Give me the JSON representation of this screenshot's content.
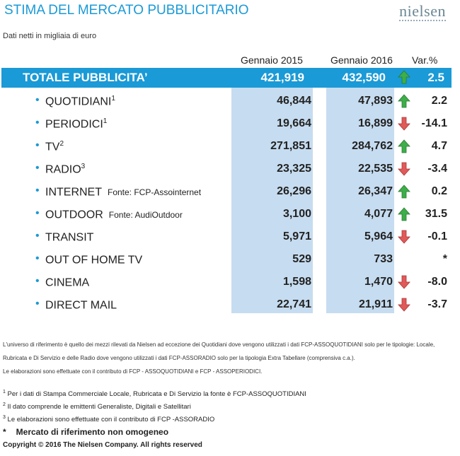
{
  "header": {
    "title": "STIMA DEL MERCATO PUBBLICITARIO",
    "logo": "nielsen",
    "subtitle": "Dati netti in migliaia di euro"
  },
  "columns": {
    "c1": "Gennaio 2015",
    "c2": "Gennaio 2016",
    "c3": "Var.%"
  },
  "colors": {
    "accent": "#1a9ad6",
    "column_bg": "#c6dcf0",
    "up": "#3dae49",
    "down": "#e05a5a"
  },
  "total": {
    "label": "TOTALE PUBBLICITA’",
    "v2015": "421,919",
    "v2016": "432,590",
    "trend": "up",
    "var": "2.5"
  },
  "rows": [
    {
      "label": "QUOTIDIANI",
      "sup": "1",
      "source": "",
      "v2015": "46,844",
      "v2016": "47,893",
      "trend": "up",
      "var": "2.2"
    },
    {
      "label": "PERIODICI",
      "sup": "1",
      "source": "",
      "v2015": "19,664",
      "v2016": "16,899",
      "trend": "down",
      "var": "-14.1"
    },
    {
      "label": "TV",
      "sup": "2",
      "source": "",
      "v2015": "271,851",
      "v2016": "284,762",
      "trend": "up",
      "var": "4.7"
    },
    {
      "label": "RADIO",
      "sup": "3",
      "source": "",
      "v2015": "23,325",
      "v2016": "22,535",
      "trend": "down",
      "var": "-3.4"
    },
    {
      "label": "INTERNET",
      "sup": "",
      "source": "Fonte: FCP-Assointernet",
      "v2015": "26,296",
      "v2016": "26,347",
      "trend": "up",
      "var": "0.2"
    },
    {
      "label": "OUTDOOR",
      "sup": "",
      "source": "Fonte: AudiOutdoor",
      "v2015": "3,100",
      "v2016": "4,077",
      "trend": "up",
      "var": "31.5"
    },
    {
      "label": "TRANSIT",
      "sup": "",
      "source": "",
      "v2015": "5,971",
      "v2016": "5,964",
      "trend": "down",
      "var": "-0.1"
    },
    {
      "label": "OUT OF HOME TV",
      "sup": "",
      "source": "",
      "v2015": "529",
      "v2016": "733",
      "trend": "",
      "var": "*"
    },
    {
      "label": "CINEMA",
      "sup": "",
      "source": "",
      "v2015": "1,598",
      "v2016": "1,470",
      "trend": "down",
      "var": "-8.0"
    },
    {
      "label": "DIRECT MAIL",
      "sup": "",
      "source": "",
      "v2015": "22,741",
      "v2016": "21,911",
      "trend": "down",
      "var": "-3.7"
    }
  ],
  "notes": [
    "L'universo di riferimento è quello dei mezzi rilevati da Nielsen ad eccezione dei Quotidiani dove vengono utilizzati i dati FCP-ASSOQUOTIDIANI solo per le tipologie: Locale,",
    "Rubricata e Di Servizio e delle Radio dove vengono utilizzati i dati FCP-ASSORADIO solo per la tipologia Extra Tabellare (comprensiva c.a.).",
    "Le elaborazioni sono effettuate con il contributo di FCP - ASSOQUOTIDIANI e FCP - ASSOPERIODICI."
  ],
  "footnotes": [
    {
      "mark": "1",
      "text": "Per i dati di Stampa Commerciale Locale, Rubricata e Di Servizio la fonte è  FCP-ASSOQUOTIDIANI"
    },
    {
      "mark": "2",
      "text": "Il dato comprende le emittenti Generaliste, Digitali e Satellitari"
    },
    {
      "mark": "3",
      "text": "Le elaborazioni sono effettuate con il contributo di FCP -ASSORADIO"
    }
  ],
  "asterisk": {
    "mark": "*",
    "text": "Mercato di riferimento non omogeneo"
  },
  "copyright": "Copyright © 2016 The Nielsen Company. All rights reserved"
}
